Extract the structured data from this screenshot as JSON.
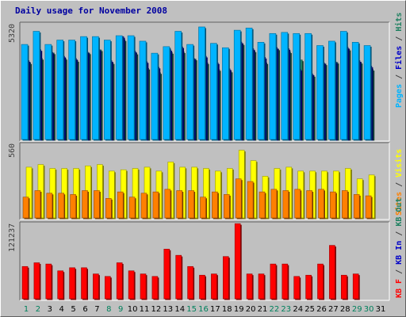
{
  "title": "Daily usage for November 2008",
  "colors": {
    "hits": "#1e8060",
    "files": "#0000c8",
    "pages": "#00b4ff",
    "visits": "#ffff00",
    "sites": "#ff8000",
    "kbin": "#0000c8",
    "kbout": "#1e8060",
    "kbf": "#ff0000",
    "weekend": "#00805c",
    "weekday": "#000000",
    "label_dark": "#404040"
  },
  "chart_data": [
    {
      "type": "bar",
      "name": "requests",
      "ymax_label": "5320",
      "ylim": [
        0,
        5320
      ],
      "legend": [
        "Pages",
        "Files",
        "Hits"
      ],
      "categories": [
        "1",
        "2",
        "3",
        "4",
        "5",
        "6",
        "7",
        "8",
        "9",
        "10",
        "11",
        "12",
        "13",
        "14",
        "15",
        "16",
        "17",
        "18",
        "19",
        "20",
        "21",
        "22",
        "23",
        "24",
        "25",
        "26",
        "27",
        "28",
        "29",
        "30",
        "31"
      ],
      "series": [
        {
          "name": "Hits",
          "values": [
            4340,
            4940,
            4340,
            4540,
            4540,
            4700,
            4700,
            4540,
            4740,
            4740,
            4490,
            3940,
            4240,
            4940,
            4340,
            5140,
            4390,
            4190,
            4990,
            5090,
            4440,
            4840,
            4890,
            4840,
            4840,
            4290,
            4490,
            4940,
            4440,
            4290,
            0
          ]
        },
        {
          "name": "Files",
          "values": [
            3600,
            4100,
            3980,
            3800,
            3700,
            3990,
            4100,
            3600,
            4700,
            4040,
            3550,
            3300,
            4100,
            4230,
            3700,
            3800,
            3500,
            3230,
            4450,
            4150,
            3750,
            4200,
            4150,
            3200,
            3000,
            3500,
            3540,
            4210,
            3600,
            3350,
            0
          ]
        },
        {
          "name": "Pages",
          "values": [
            3500,
            3700,
            3950,
            3700,
            3600,
            3950,
            4090,
            3500,
            4550,
            3940,
            3250,
            3050,
            3970,
            4000,
            3670,
            3500,
            3190,
            3120,
            4370,
            4040,
            3500,
            4130,
            4000,
            3630,
            2920,
            3450,
            3520,
            4120,
            3520,
            3200,
            0
          ]
        }
      ]
    },
    {
      "type": "bar",
      "name": "visitors",
      "ymax_label": "560",
      "ylim": [
        0,
        560
      ],
      "legend": [
        "Visits",
        "Sites"
      ],
      "categories": [
        "1",
        "2",
        "3",
        "4",
        "5",
        "6",
        "7",
        "8",
        "9",
        "10",
        "11",
        "12",
        "13",
        "14",
        "15",
        "16",
        "17",
        "18",
        "19",
        "20",
        "21",
        "22",
        "23",
        "24",
        "25",
        "26",
        "27",
        "28",
        "29",
        "30",
        "31"
      ],
      "series": [
        {
          "name": "Visits",
          "values": [
            390,
            410,
            380,
            380,
            380,
            400,
            410,
            360,
            370,
            380,
            390,
            360,
            430,
            390,
            390,
            380,
            360,
            380,
            520,
            440,
            320,
            380,
            390,
            360,
            360,
            360,
            360,
            380,
            300,
            330,
            0
          ]
        },
        {
          "name": "Sites",
          "values": [
            160,
            210,
            190,
            190,
            180,
            210,
            210,
            150,
            200,
            160,
            190,
            200,
            220,
            210,
            210,
            160,
            200,
            180,
            300,
            280,
            200,
            220,
            210,
            220,
            210,
            220,
            200,
            210,
            180,
            170,
            0
          ]
        }
      ]
    },
    {
      "type": "bar",
      "name": "kbytes",
      "ymax_label": "121237",
      "ylim": [
        0,
        121237
      ],
      "legend": [
        "KB F",
        "KB In",
        "KB Out"
      ],
      "categories": [
        "1",
        "2",
        "3",
        "4",
        "5",
        "6",
        "7",
        "8",
        "9",
        "10",
        "11",
        "12",
        "13",
        "14",
        "15",
        "16",
        "17",
        "18",
        "19",
        "20",
        "21",
        "22",
        "23",
        "24",
        "25",
        "26",
        "27",
        "28",
        "29",
        "30",
        "31"
      ],
      "series": [
        {
          "name": "KB F",
          "values": [
            52000,
            58000,
            56000,
            45000,
            50000,
            50000,
            40000,
            36000,
            58000,
            45000,
            40000,
            36000,
            80000,
            70000,
            52000,
            38000,
            40000,
            68000,
            121000,
            40000,
            40000,
            56000,
            56000,
            36000,
            38000,
            56000,
            86000,
            38000,
            40000,
            0,
            0
          ]
        }
      ]
    }
  ]
}
